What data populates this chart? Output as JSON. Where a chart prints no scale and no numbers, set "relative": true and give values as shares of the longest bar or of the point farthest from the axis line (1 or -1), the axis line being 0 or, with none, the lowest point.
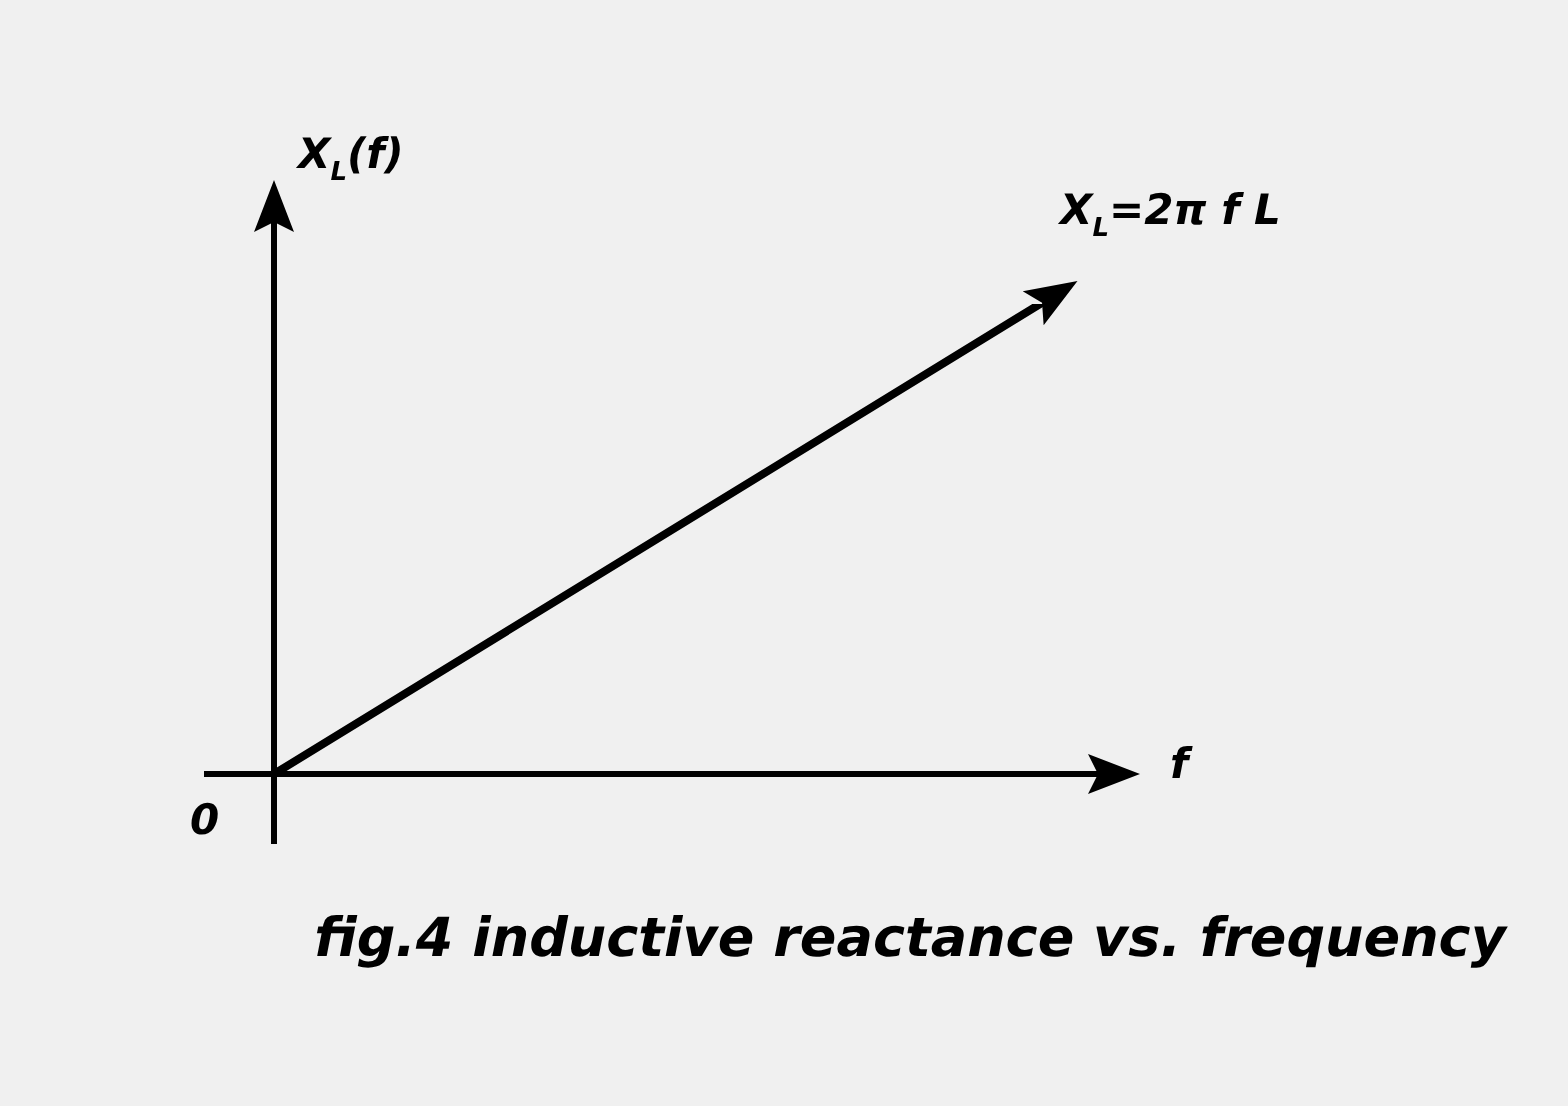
{
  "chart_data": {
    "type": "line",
    "title": "fig.4 inductive reactance vs. frequency",
    "xlabel": "f",
    "ylabel": "X$_{L}$(f)",
    "relative": true,
    "categories": [
      null,
      null
    ],
    "series": [
      {
        "name": "X$_{L}$=2π f L",
        "color": "#000000",
        "values": [
          0,
          1
        ]
      }
    ],
    "annotations": [
      "0"
    ],
    "legend": false
  }
}
